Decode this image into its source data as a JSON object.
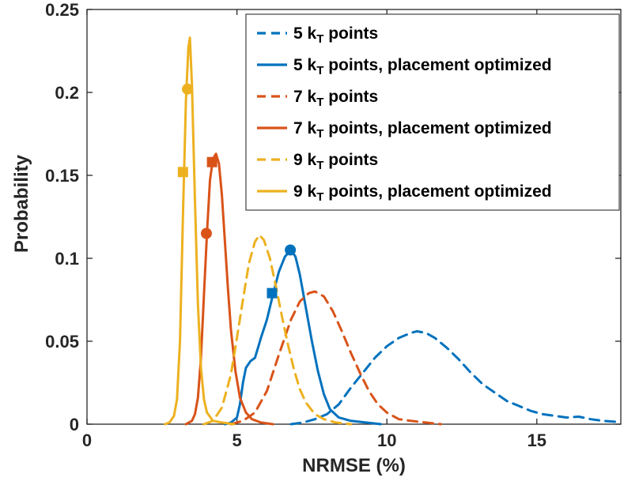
{
  "figure": {
    "background": "#ffffff",
    "axis_color": "#262626"
  },
  "chart_data": {
    "type": "line",
    "title": "",
    "xlabel": "NRMSE (%)",
    "ylabel": "Probability",
    "xlim": [
      0,
      17.8
    ],
    "ylim": [
      0,
      0.25
    ],
    "xticks": [
      0,
      5,
      10,
      15
    ],
    "xtick_labels": [
      "0",
      "5",
      "10",
      "15"
    ],
    "yticks": [
      0,
      0.05,
      0.1,
      0.15,
      0.2,
      0.25
    ],
    "ytick_labels": [
      "0",
      "0.05",
      "0.1",
      "0.15",
      "0.2",
      "0.25"
    ],
    "grid": false,
    "legend": {
      "position": "top-inside",
      "border_color": "#4d4d4d",
      "background": "#ffffff"
    },
    "series": [
      {
        "name": "5 kT points",
        "label_parts": {
          "pre": "5 k",
          "sub": "T",
          "post": " points"
        },
        "color": "#0072BD",
        "style": "dashed",
        "points": [
          [
            6.8,
            0
          ],
          [
            7.2,
            0.001
          ],
          [
            7.6,
            0.003
          ],
          [
            8.0,
            0.006
          ],
          [
            8.4,
            0.012
          ],
          [
            8.8,
            0.022
          ],
          [
            9.2,
            0.031
          ],
          [
            9.6,
            0.04
          ],
          [
            10.0,
            0.047
          ],
          [
            10.4,
            0.052
          ],
          [
            10.8,
            0.055
          ],
          [
            11.0,
            0.056
          ],
          [
            11.3,
            0.055
          ],
          [
            11.6,
            0.052
          ],
          [
            12.0,
            0.046
          ],
          [
            12.4,
            0.039
          ],
          [
            12.8,
            0.031
          ],
          [
            13.2,
            0.024
          ],
          [
            13.6,
            0.019
          ],
          [
            14.0,
            0.014
          ],
          [
            14.4,
            0.011
          ],
          [
            14.8,
            0.008
          ],
          [
            15.2,
            0.006
          ],
          [
            15.6,
            0.005
          ],
          [
            16.0,
            0.004
          ],
          [
            16.4,
            0.0045
          ],
          [
            16.8,
            0.003
          ],
          [
            17.2,
            0.002
          ],
          [
            17.6,
            0.0015
          ],
          [
            17.8,
            0.001
          ]
        ]
      },
      {
        "name": "5 kT points, placement optimized",
        "label_parts": {
          "pre": "5 k",
          "sub": "T",
          "post": " points, placement optimized"
        },
        "color": "#0072BD",
        "style": "solid",
        "points": [
          [
            4.6,
            0
          ],
          [
            4.8,
            0.001
          ],
          [
            5.0,
            0.004
          ],
          [
            5.1,
            0.012
          ],
          [
            5.2,
            0.025
          ],
          [
            5.3,
            0.034
          ],
          [
            5.45,
            0.038
          ],
          [
            5.6,
            0.04
          ],
          [
            5.7,
            0.046
          ],
          [
            5.8,
            0.052
          ],
          [
            6.0,
            0.063
          ],
          [
            6.2,
            0.078
          ],
          [
            6.4,
            0.092
          ],
          [
            6.6,
            0.101
          ],
          [
            6.8,
            0.105
          ],
          [
            6.95,
            0.101
          ],
          [
            7.1,
            0.09
          ],
          [
            7.3,
            0.07
          ],
          [
            7.5,
            0.05
          ],
          [
            7.7,
            0.032
          ],
          [
            7.9,
            0.018
          ],
          [
            8.1,
            0.009
          ],
          [
            8.4,
            0.004
          ],
          [
            8.8,
            0.002
          ],
          [
            9.3,
            0.001
          ],
          [
            9.8,
            0
          ]
        ]
      },
      {
        "name": "7 kT points",
        "label_parts": {
          "pre": "7 k",
          "sub": "T",
          "post": " points"
        },
        "color": "#D95319",
        "style": "dashed",
        "points": [
          [
            4.8,
            0
          ],
          [
            5.2,
            0.002
          ],
          [
            5.6,
            0.007
          ],
          [
            6.0,
            0.02
          ],
          [
            6.4,
            0.042
          ],
          [
            6.8,
            0.063
          ],
          [
            7.1,
            0.074
          ],
          [
            7.4,
            0.079
          ],
          [
            7.6,
            0.08
          ],
          [
            7.9,
            0.077
          ],
          [
            8.2,
            0.068
          ],
          [
            8.5,
            0.056
          ],
          [
            8.8,
            0.043
          ],
          [
            9.1,
            0.031
          ],
          [
            9.4,
            0.02
          ],
          [
            9.7,
            0.012
          ],
          [
            10.0,
            0.007
          ],
          [
            10.4,
            0.003
          ],
          [
            10.8,
            0.002
          ],
          [
            11.3,
            0.001
          ],
          [
            11.8,
            0
          ]
        ]
      },
      {
        "name": "7 kT points, placement optimized",
        "label_parts": {
          "pre": "7 k",
          "sub": "T",
          "post": " points, placement optimized"
        },
        "color": "#D95319",
        "style": "solid",
        "points": [
          [
            3.3,
            0
          ],
          [
            3.5,
            0.002
          ],
          [
            3.6,
            0.006
          ],
          [
            3.7,
            0.016
          ],
          [
            3.8,
            0.04
          ],
          [
            3.9,
            0.078
          ],
          [
            4.0,
            0.115
          ],
          [
            4.1,
            0.147
          ],
          [
            4.2,
            0.16
          ],
          [
            4.3,
            0.163
          ],
          [
            4.4,
            0.157
          ],
          [
            4.5,
            0.138
          ],
          [
            4.6,
            0.11
          ],
          [
            4.7,
            0.082
          ],
          [
            4.8,
            0.057
          ],
          [
            4.95,
            0.032
          ],
          [
            5.1,
            0.016
          ],
          [
            5.3,
            0.007
          ],
          [
            5.5,
            0.003
          ],
          [
            5.8,
            0.001
          ],
          [
            6.2,
            0
          ]
        ]
      },
      {
        "name": "9 kT points",
        "label_parts": {
          "pre": "9 k",
          "sub": "T",
          "post": " points"
        },
        "color": "#EDB120",
        "style": "dashed",
        "points": [
          [
            3.9,
            0
          ],
          [
            4.2,
            0.002
          ],
          [
            4.5,
            0.01
          ],
          [
            4.8,
            0.03
          ],
          [
            5.0,
            0.052
          ],
          [
            5.2,
            0.075
          ],
          [
            5.4,
            0.097
          ],
          [
            5.6,
            0.11
          ],
          [
            5.75,
            0.114
          ],
          [
            5.9,
            0.111
          ],
          [
            6.1,
            0.1
          ],
          [
            6.3,
            0.083
          ],
          [
            6.5,
            0.065
          ],
          [
            6.7,
            0.048
          ],
          [
            6.9,
            0.033
          ],
          [
            7.1,
            0.021
          ],
          [
            7.3,
            0.013
          ],
          [
            7.6,
            0.006
          ],
          [
            7.9,
            0.003
          ],
          [
            8.3,
            0.001
          ],
          [
            8.8,
            0
          ]
        ]
      },
      {
        "name": "9 kT points, placement optimized",
        "label_parts": {
          "pre": "9 k",
          "sub": "T",
          "post": " points, placement optimized"
        },
        "color": "#EDB120",
        "style": "solid",
        "points": [
          [
            2.6,
            0
          ],
          [
            2.75,
            0.001
          ],
          [
            2.9,
            0.005
          ],
          [
            3.0,
            0.015
          ],
          [
            3.1,
            0.05
          ],
          [
            3.2,
            0.125
          ],
          [
            3.3,
            0.195
          ],
          [
            3.38,
            0.227
          ],
          [
            3.43,
            0.233
          ],
          [
            3.5,
            0.205
          ],
          [
            3.6,
            0.135
          ],
          [
            3.7,
            0.072
          ],
          [
            3.8,
            0.034
          ],
          [
            3.9,
            0.015
          ],
          [
            4.0,
            0.007
          ],
          [
            4.2,
            0.002
          ],
          [
            4.5,
            0.001
          ],
          [
            4.9,
            0
          ]
        ]
      }
    ],
    "markers": [
      {
        "shape": "circle",
        "color": "#EDB120",
        "x": 3.35,
        "y": 0.202
      },
      {
        "shape": "square",
        "color": "#EDB120",
        "x": 3.2,
        "y": 0.152
      },
      {
        "shape": "square",
        "color": "#D95319",
        "x": 4.17,
        "y": 0.158
      },
      {
        "shape": "circle",
        "color": "#D95319",
        "x": 3.98,
        "y": 0.115
      },
      {
        "shape": "circle",
        "color": "#0072BD",
        "x": 6.78,
        "y": 0.105
      },
      {
        "shape": "square",
        "color": "#0072BD",
        "x": 6.17,
        "y": 0.079
      }
    ]
  }
}
